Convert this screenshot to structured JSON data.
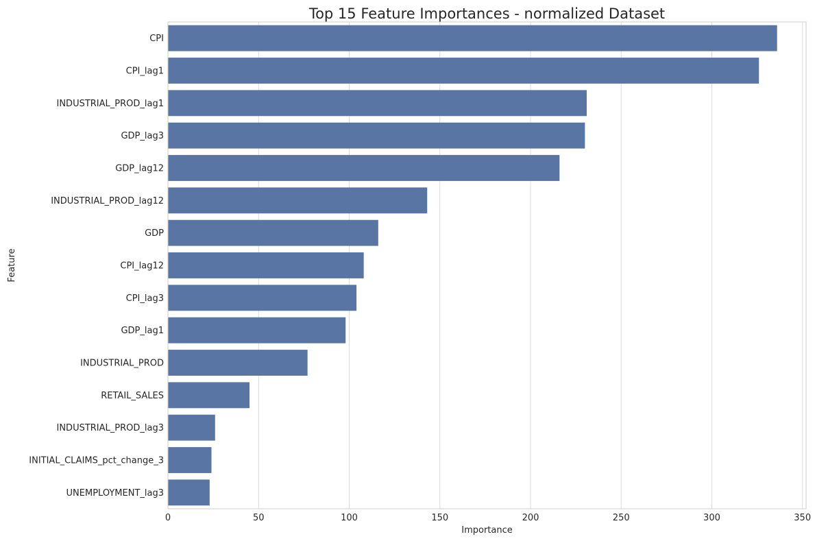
{
  "chart_data": {
    "type": "bar",
    "orientation": "horizontal",
    "title": "Top 15 Feature Importances - normalized Dataset",
    "xlabel": "Importance",
    "ylabel": "Feature",
    "xlim": [
      0,
      352
    ],
    "xticks": [
      0,
      50,
      100,
      150,
      200,
      250,
      300,
      350
    ],
    "grid": "vertical",
    "bar_color": "#5975a4",
    "categories": [
      "CPI",
      "CPI_lag1",
      "INDUSTRIAL_PROD_lag1",
      "GDP_lag3",
      "GDP_lag12",
      "INDUSTRIAL_PROD_lag12",
      "GDP",
      "CPI_lag12",
      "CPI_lag3",
      "GDP_lag1",
      "INDUSTRIAL_PROD",
      "RETAIL_SALES",
      "INDUSTRIAL_PROD_lag3",
      "INITIAL_CLAIMS_pct_change_3",
      "UNEMPLOYMENT_lag3"
    ],
    "values": [
      336,
      326,
      231,
      230,
      216,
      143,
      116,
      108,
      104,
      98,
      77,
      45,
      26,
      24,
      23
    ]
  }
}
